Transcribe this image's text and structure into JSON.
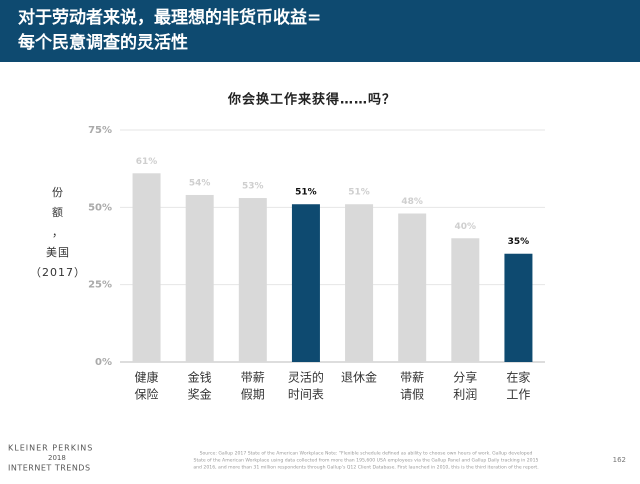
{
  "header": {
    "title_lines": [
      "对于劳动者来说，最理想的非货币收益=",
      "每个民意调查的灵活性"
    ]
  },
  "chart_data": {
    "type": "bar",
    "title": "你会换工作来获得……吗？",
    "y_label_lines": [
      "份",
      "额",
      "，",
      "美国",
      "（2017）"
    ],
    "categories": [
      [
        "健康",
        "保险"
      ],
      [
        "金钱",
        "奖金"
      ],
      [
        "带薪",
        "假期"
      ],
      [
        "灵活的",
        "时间表"
      ],
      [
        "退休金"
      ],
      [
        "带薪",
        "请假"
      ],
      [
        "分享",
        "利润"
      ],
      [
        "在家",
        "工作"
      ]
    ],
    "values": [
      61,
      54,
      53,
      51,
      51,
      48,
      40,
      35
    ],
    "value_labels": [
      "61%",
      "54%",
      "53%",
      "51%",
      "51%",
      "48%",
      "40%",
      "35%"
    ],
    "colors": [
      "#d9d9d9",
      "#d9d9d9",
      "#d9d9d9",
      "#0e4a70",
      "#d9d9d9",
      "#d9d9d9",
      "#d9d9d9",
      "#0e4a70"
    ],
    "highlight_color": "#0e4a70",
    "ylim": [
      0,
      75
    ],
    "yticks": [
      {
        "value": 0,
        "label": "0%"
      },
      {
        "value": 25,
        "label": "25%"
      },
      {
        "value": 50,
        "label": "50%"
      },
      {
        "value": 75,
        "label": "75%"
      }
    ],
    "grid": true
  },
  "footer": {
    "logo_lines": [
      "KLEINER PERKINS",
      "2018",
      "INTERNET TRENDS"
    ],
    "source_lines": [
      "Source: Gallup 2017 State of the American Workplace Note: \"Flexible schedule defined as ability to choose own hours of work. Gallup developed",
      "State of the American Workplace using data collected from more than 195,600 USA employees via the Gallup Panel and Gallup Daily tracking in 2015",
      "and 2016, and more than 31 million respondents through Gallup's Q12 Client Database. First launched in 2010, this is the third iteration of the report."
    ],
    "page": "162"
  }
}
